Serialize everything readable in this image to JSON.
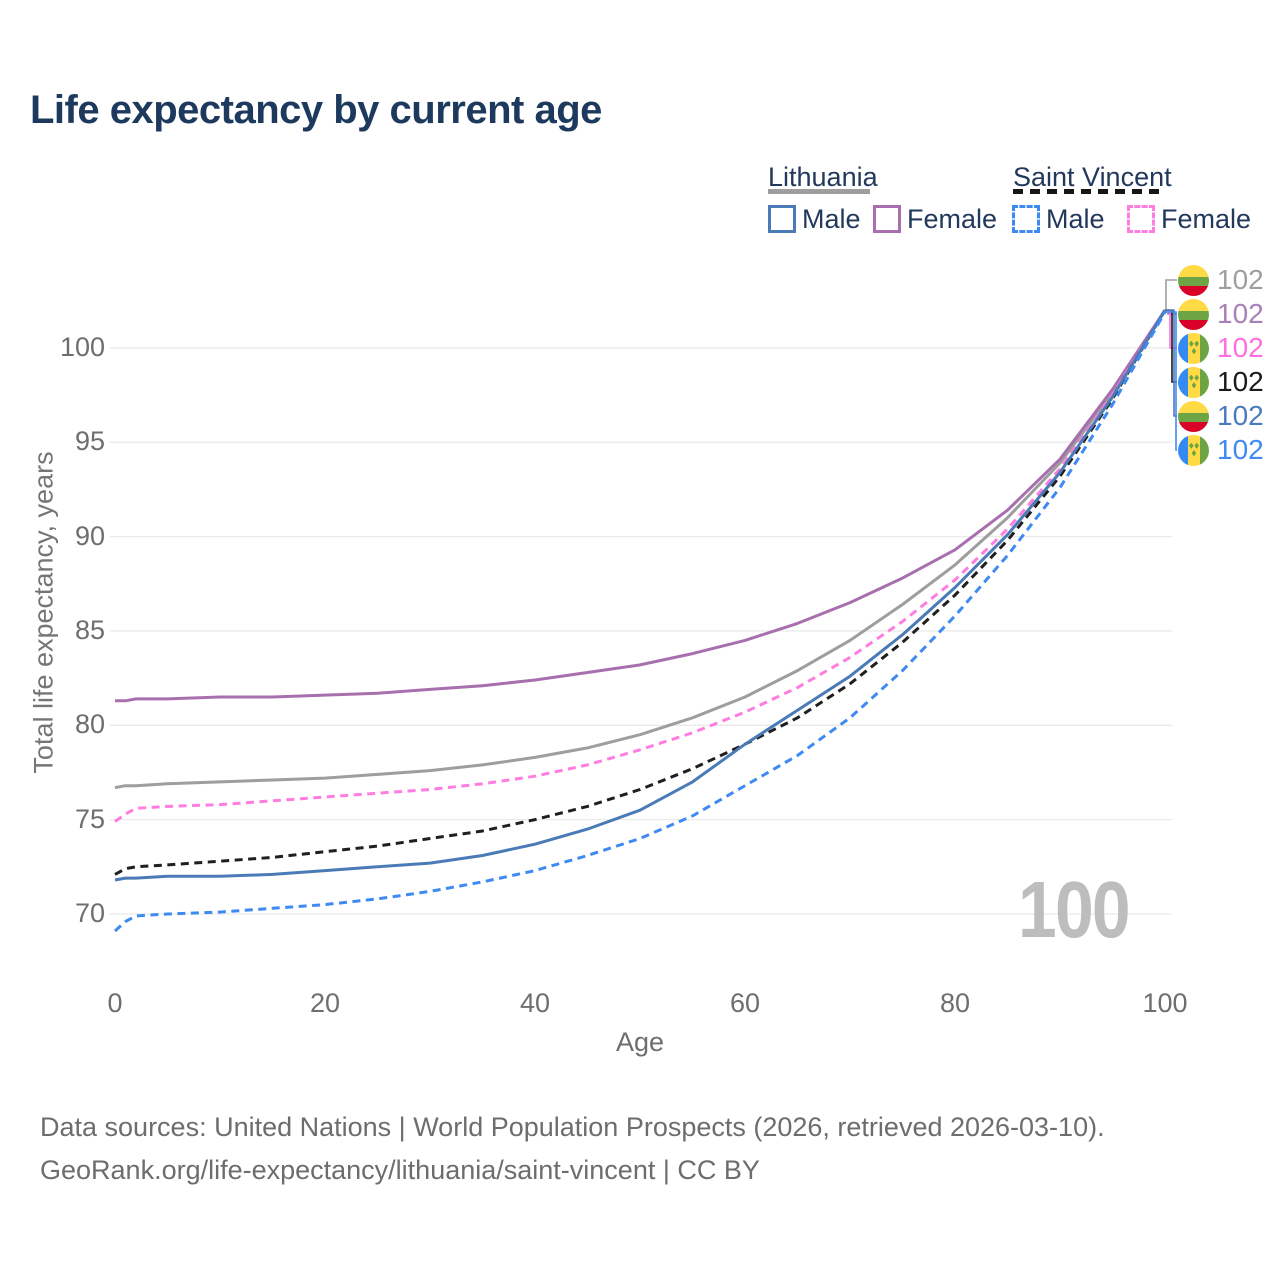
{
  "title": "Life expectancy by current age",
  "watermark": "100",
  "footer": {
    "line1": "Data sources: United Nations | World Population Prospects (2026, retrieved 2026-03-10).",
    "line2": "GeoRank.org/life-expectancy/lithuania/saint-vincent | CC BY"
  },
  "legend": {
    "groups": [
      {
        "label": "Lithuania",
        "underline_style": "solid",
        "underline_color": "#9e9e9e",
        "items": [
          {
            "label": "Male",
            "color": "#4a7bb7",
            "dashed": false
          },
          {
            "label": "Female",
            "color": "#a86fae",
            "dashed": false
          }
        ]
      },
      {
        "label": "Saint Vincent",
        "underline_style": "dashed",
        "underline_color": "#161616",
        "items": [
          {
            "label": "Male",
            "color": "#3f8af2",
            "dashed": true
          },
          {
            "label": "Female",
            "color": "#ff7ce0",
            "dashed": true
          }
        ]
      }
    ]
  },
  "chart_data": {
    "type": "line",
    "title": "Life expectancy by current age",
    "xlabel": "Age",
    "ylabel": "Total life expectancy, years",
    "x_ticks": [
      0,
      20,
      40,
      60,
      80,
      100
    ],
    "y_ticks": [
      70,
      75,
      80,
      85,
      90,
      95,
      100
    ],
    "xlim": [
      0,
      100
    ],
    "ylim": [
      68.5,
      103
    ],
    "grid": "horizontal-only",
    "legend_position": "top-right",
    "x": [
      0,
      1,
      2,
      5,
      10,
      15,
      20,
      25,
      30,
      35,
      40,
      45,
      50,
      55,
      60,
      65,
      70,
      75,
      80,
      85,
      90,
      95,
      100
    ],
    "series": [
      {
        "name": "Lithuania — both sexes",
        "country": "Lithuania",
        "sex": "Both",
        "color": "#9e9e9e",
        "label_color": "#9e9e9e",
        "dashed": false,
        "flag": "lt",
        "row": 0,
        "end_label": "102",
        "values": [
          76.7,
          76.8,
          76.8,
          76.9,
          77.0,
          77.1,
          77.2,
          77.4,
          77.6,
          77.9,
          78.3,
          78.8,
          79.5,
          80.4,
          81.5,
          82.9,
          84.5,
          86.4,
          88.5,
          91.0,
          93.9,
          97.6,
          102
        ]
      },
      {
        "name": "Lithuania — Female",
        "country": "Lithuania",
        "sex": "Female",
        "color": "#a86fae",
        "label_color": "#a87fb8",
        "dashed": false,
        "flag": "lt",
        "row": 1,
        "end_label": "102",
        "values": [
          81.3,
          81.3,
          81.4,
          81.4,
          81.5,
          81.5,
          81.6,
          81.7,
          81.9,
          82.1,
          82.4,
          82.8,
          83.2,
          83.8,
          84.5,
          85.4,
          86.5,
          87.8,
          89.3,
          91.4,
          94.1,
          97.8,
          102
        ]
      },
      {
        "name": "Saint Vincent — Female",
        "country": "Saint Vincent",
        "sex": "Female",
        "color": "#ff7ce0",
        "label_color": "#ff6ee0",
        "dashed": true,
        "flag": "vc",
        "row": 2,
        "end_label": "102",
        "values": [
          74.9,
          75.3,
          75.6,
          75.7,
          75.8,
          76.0,
          76.2,
          76.4,
          76.6,
          76.9,
          77.3,
          77.9,
          78.7,
          79.6,
          80.7,
          82.0,
          83.6,
          85.5,
          87.7,
          90.4,
          93.6,
          97.5,
          102
        ]
      },
      {
        "name": "Saint Vincent — both sexes",
        "country": "Saint Vincent",
        "sex": "Both",
        "color": "#1f1f1f",
        "label_color": "#1a1a1a",
        "dashed": true,
        "flag": "vc",
        "row": 3,
        "end_label": "102",
        "values": [
          72.1,
          72.4,
          72.5,
          72.6,
          72.8,
          73.0,
          73.3,
          73.6,
          74.0,
          74.4,
          75.0,
          75.7,
          76.6,
          77.7,
          79.0,
          80.4,
          82.2,
          84.4,
          86.9,
          89.8,
          93.2,
          97.3,
          102
        ]
      },
      {
        "name": "Lithuania — Male",
        "country": "Lithuania",
        "sex": "Male",
        "color": "#4a7bb7",
        "label_color": "#4a7bbd",
        "dashed": false,
        "flag": "lt",
        "row": 4,
        "end_label": "102",
        "values": [
          71.8,
          71.9,
          71.9,
          72.0,
          72.0,
          72.1,
          72.3,
          72.5,
          72.7,
          73.1,
          73.7,
          74.5,
          75.5,
          77.0,
          79.0,
          80.8,
          82.6,
          84.8,
          87.3,
          90.1,
          93.4,
          97.4,
          102
        ]
      },
      {
        "name": "Saint Vincent — Male",
        "country": "Saint Vincent",
        "sex": "Male",
        "color": "#3f8af2",
        "label_color": "#3f8af2",
        "dashed": true,
        "flag": "vc",
        "row": 5,
        "end_label": "102",
        "values": [
          69.1,
          69.6,
          69.9,
          70.0,
          70.1,
          70.3,
          70.5,
          70.8,
          71.2,
          71.7,
          72.3,
          73.1,
          74.0,
          75.2,
          76.8,
          78.4,
          80.4,
          82.9,
          85.8,
          89.0,
          92.6,
          97.0,
          101.9
        ]
      }
    ]
  }
}
